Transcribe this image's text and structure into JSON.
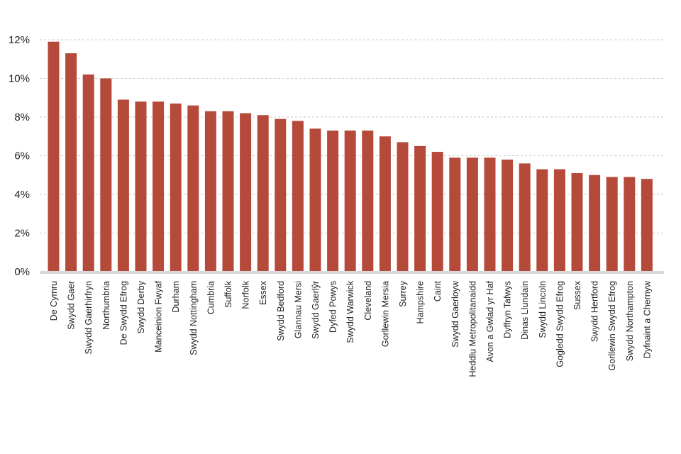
{
  "chart_data": {
    "type": "bar",
    "title": "",
    "xlabel": "",
    "ylabel": "",
    "ylim": [
      0,
      12
    ],
    "yticks": [
      "0%",
      "2%",
      "4%",
      "6%",
      "8%",
      "10%",
      "12%"
    ],
    "grid": true,
    "bar_color": "#b5493a",
    "categories": [
      "De Cymru",
      "Swydd Gaer",
      "Swydd Gaerhirfryn",
      "Northumbria",
      "De Swydd Efrog",
      "Swydd Derby",
      "Manceinion Fwyaf",
      "Durham",
      "Swydd Nottingham",
      "Cumbria",
      "Suffolk",
      "Norfolk",
      "Essex",
      "Swydd Bedford",
      "Glannau Mersi",
      "Swydd Gaerlŷr",
      "Dyfed Powys",
      "Swydd Warwick",
      "Cleveland",
      "Gorllewin Mersia",
      "Surrey",
      "Hampshire",
      "Caint",
      "Swydd Gaerloyw",
      "Heddlu Metropolitanaidd",
      "Avon a Gwlad yr Haf",
      "Dyffryn Tafwys",
      "Dinas Llundain",
      "Swydd Lincoln",
      "Gogledd Swydd Efrog",
      "Sussex",
      "Swydd Hertford",
      "Gorllewin Swydd Efrog",
      "Swydd Northampton",
      "Dyfnaint a Chernyw"
    ],
    "values": [
      11.9,
      11.3,
      10.2,
      10.0,
      8.9,
      8.8,
      8.8,
      8.7,
      8.6,
      8.3,
      8.3,
      8.2,
      8.1,
      7.9,
      7.8,
      7.4,
      7.3,
      7.3,
      7.3,
      7.0,
      6.7,
      6.5,
      6.2,
      5.9,
      5.9,
      5.9,
      5.8,
      5.6,
      5.3,
      5.3,
      5.1,
      5.0,
      4.9,
      4.9,
      4.8
    ]
  }
}
